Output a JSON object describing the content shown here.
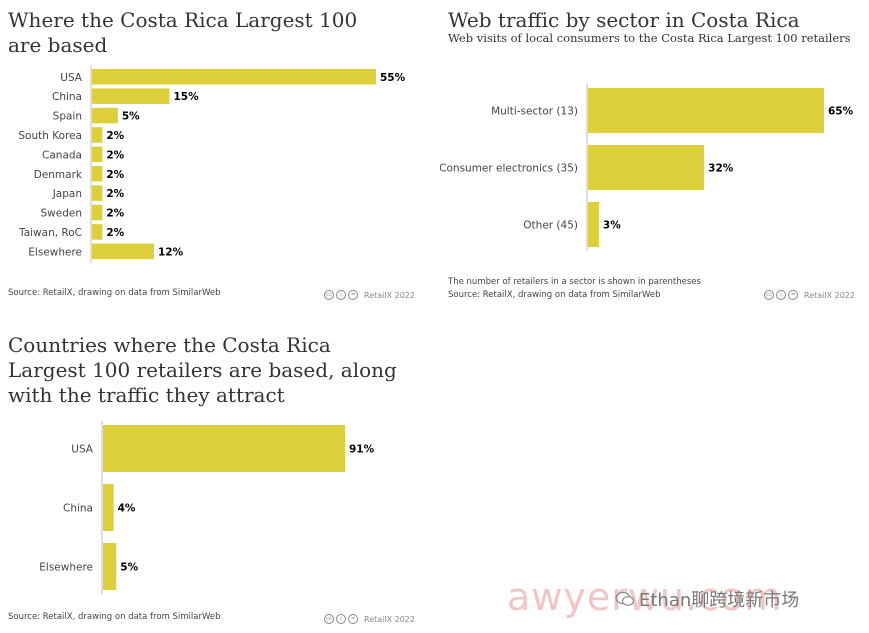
{
  "chart_data": [
    {
      "type": "bar",
      "orientation": "horizontal",
      "title": "Where the Costa Rica Largest 100 are based",
      "categories": [
        "USA",
        "China",
        "Spain",
        "South Korea",
        "Canada",
        "Denmark",
        "Japan",
        "Sweden",
        "Taiwan, RoC",
        "Elsewhere"
      ],
      "values": [
        55,
        15,
        5,
        2,
        2,
        2,
        2,
        2,
        2,
        12
      ],
      "value_labels": [
        "55%",
        "15%",
        "5%",
        "2%",
        "2%",
        "2%",
        "2%",
        "2%",
        "2%",
        "12%"
      ],
      "xlim": [
        0,
        55
      ],
      "grid": false,
      "source": "Source: RetailX, drawing on data from SimilarWeb",
      "credit": "RetailX 2022",
      "color": "#dccf3a"
    },
    {
      "type": "bar",
      "orientation": "horizontal",
      "title": "Web traffic by sector in Costa Rica",
      "subtitle": "Web visits of local consumers to the Costa Rica Largest 100 retailers",
      "categories": [
        "Multi-sector (13)",
        "Consumer electronics (35)",
        "Other (45)"
      ],
      "values": [
        65,
        32,
        3
      ],
      "value_labels": [
        "65%",
        "32%",
        "3%"
      ],
      "xlim": [
        0,
        65
      ],
      "grid": false,
      "note": "The number of retailers in a sector is shown in parentheses",
      "source": "Source: RetailX, drawing on data from SimilarWeb",
      "credit": "RetailX 2022",
      "color": "#dccf3a"
    },
    {
      "type": "bar",
      "orientation": "horizontal",
      "title": "Countries where the Costa Rica Largest 100 retailers are based, along with the traffic they attract",
      "categories": [
        "USA",
        "China",
        "Elsewhere"
      ],
      "values": [
        91,
        4,
        5
      ],
      "value_labels": [
        "91%",
        "4%",
        "5%"
      ],
      "xlim": [
        0,
        91
      ],
      "grid": false,
      "source": "Source: RetailX, drawing on data from SimilarWeb",
      "credit": "RetailX 2022",
      "color": "#dccf3a"
    }
  ],
  "watermark": {
    "text": "awyerwu.com",
    "account": "Ethan聊跨境新市场",
    "icon": "wechat-icon"
  },
  "icons": {
    "cc": "cc-icon",
    "by": "by-icon",
    "equals": "nd-icon"
  }
}
